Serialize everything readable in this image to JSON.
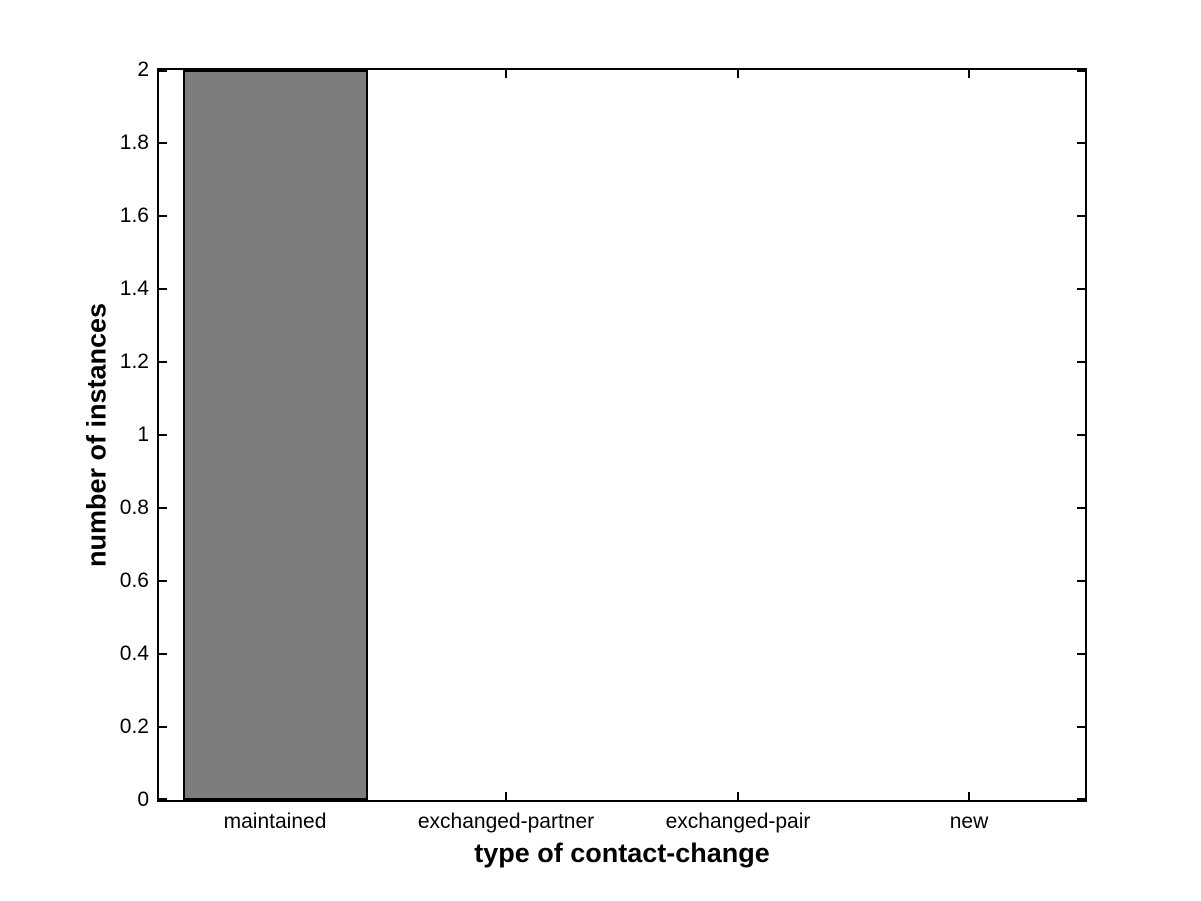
{
  "chart_data": {
    "type": "bar",
    "title": "",
    "categories": [
      "maintained",
      "exchanged-partner",
      "exchanged-pair",
      "new"
    ],
    "values": [
      2,
      0,
      0,
      0
    ],
    "xlabel": "type of contact-change",
    "ylabel": "number of instances",
    "ylim": [
      0,
      2
    ],
    "yticks": [
      {
        "value": 0,
        "label": "0"
      },
      {
        "value": 0.2,
        "label": "0.2"
      },
      {
        "value": 0.4,
        "label": "0.4"
      },
      {
        "value": 0.6,
        "label": "0.6"
      },
      {
        "value": 0.8,
        "label": "0.8"
      },
      {
        "value": 1,
        "label": "1"
      },
      {
        "value": 1.2,
        "label": "1.2"
      },
      {
        "value": 1.4,
        "label": "1.4"
      },
      {
        "value": 1.6,
        "label": "1.6"
      },
      {
        "value": 1.8,
        "label": "1.8"
      },
      {
        "value": 2,
        "label": "2"
      }
    ],
    "bar_width_fraction": 0.8,
    "grid": "off",
    "legend": "none",
    "colors": {
      "bar_fill": "#7d7d7d",
      "bar_edge": "#000000",
      "axis": "#000000",
      "background": "#ffffff",
      "text": "#000000"
    }
  }
}
